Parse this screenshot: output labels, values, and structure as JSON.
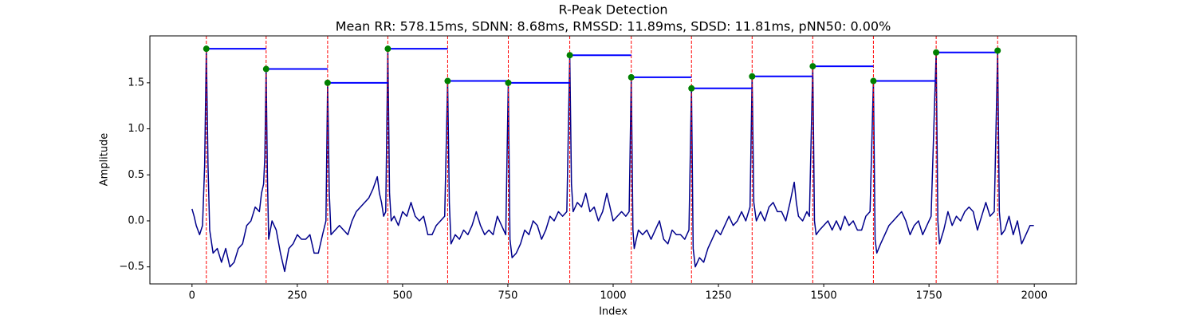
{
  "chart_data": {
    "type": "line",
    "title": "R-Peak Detection",
    "subtitle": "Mean RR: 578.15ms, SDNN: 8.68ms, RMSSD: 11.89ms, SDSD: 11.81ms, pNN50: 0.00%",
    "xlabel": "Index",
    "ylabel": "Amplitude",
    "xlim": [
      -100,
      2100
    ],
    "ylim": [
      -0.685,
      2.01
    ],
    "xticks": [
      0,
      250,
      500,
      750,
      1000,
      1250,
      1500,
      1750,
      2000
    ],
    "yticks": [
      {
        "value": -0.5,
        "label": "−0.5"
      },
      {
        "value": 0,
        "label": "0.0"
      },
      0.5,
      {
        "value": 1,
        "label": "1.0"
      },
      1.5
    ],
    "signal": {
      "color": "#00008b",
      "x": [
        0,
        5,
        10,
        18,
        25,
        30,
        34,
        38,
        42,
        50,
        60,
        70,
        80,
        90,
        100,
        110,
        120,
        130,
        140,
        150,
        160,
        165,
        170,
        173,
        176,
        179,
        182,
        190,
        200,
        210,
        220,
        230,
        240,
        250,
        260,
        270,
        280,
        290,
        300,
        310,
        318,
        322,
        326,
        330,
        340,
        350,
        360,
        370,
        380,
        390,
        400,
        410,
        420,
        430,
        440,
        445,
        450,
        455,
        460,
        465,
        469,
        473,
        480,
        490,
        500,
        510,
        520,
        530,
        540,
        550,
        560,
        570,
        580,
        590,
        600,
        607,
        611,
        615,
        625,
        635,
        645,
        655,
        665,
        675,
        685,
        695,
        705,
        715,
        725,
        735,
        745,
        751,
        755,
        760,
        770,
        780,
        790,
        800,
        810,
        820,
        830,
        840,
        850,
        860,
        870,
        880,
        890,
        897,
        901,
        905,
        915,
        925,
        935,
        945,
        955,
        965,
        975,
        985,
        990,
        1000,
        1010,
        1020,
        1030,
        1038,
        1043,
        1047,
        1050,
        1060,
        1070,
        1080,
        1090,
        1100,
        1110,
        1120,
        1130,
        1140,
        1150,
        1160,
        1170,
        1180,
        1186,
        1190,
        1195,
        1205,
        1215,
        1225,
        1235,
        1245,
        1255,
        1265,
        1275,
        1285,
        1295,
        1305,
        1315,
        1325,
        1330,
        1334,
        1340,
        1350,
        1360,
        1370,
        1380,
        1390,
        1400,
        1410,
        1420,
        1430,
        1435,
        1440,
        1450,
        1460,
        1466,
        1474,
        1478,
        1482,
        1490,
        1500,
        1510,
        1520,
        1530,
        1540,
        1550,
        1560,
        1570,
        1580,
        1590,
        1600,
        1610,
        1618,
        1622,
        1626,
        1635,
        1645,
        1655,
        1665,
        1675,
        1685,
        1695,
        1705,
        1715,
        1725,
        1735,
        1745,
        1755,
        1767,
        1771,
        1775,
        1785,
        1795,
        1805,
        1815,
        1825,
        1835,
        1845,
        1855,
        1865,
        1875,
        1885,
        1895,
        1905,
        1913,
        1917,
        1922,
        1930,
        1940,
        1950,
        1960,
        1970,
        1980,
        1990,
        1999
      ],
      "values": [
        0.13,
        0.05,
        -0.05,
        -0.15,
        -0.05,
        0.6,
        1.87,
        0.6,
        -0.1,
        -0.35,
        -0.3,
        -0.45,
        -0.3,
        -0.5,
        -0.45,
        -0.3,
        -0.25,
        -0.05,
        0.0,
        0.15,
        0.1,
        0.3,
        0.4,
        0.7,
        1.65,
        0.5,
        -0.2,
        0.0,
        -0.1,
        -0.35,
        -0.55,
        -0.3,
        -0.25,
        -0.15,
        -0.2,
        -0.2,
        -0.15,
        -0.35,
        -0.35,
        -0.15,
        0.0,
        1.5,
        0.3,
        -0.15,
        -0.1,
        -0.05,
        -0.1,
        -0.15,
        0.0,
        0.1,
        0.15,
        0.2,
        0.25,
        0.35,
        0.48,
        0.3,
        0.2,
        0.05,
        0.1,
        1.87,
        0.3,
        0.0,
        0.05,
        -0.05,
        0.1,
        0.05,
        0.2,
        0.05,
        0.0,
        0.05,
        -0.15,
        -0.15,
        -0.05,
        0.0,
        0.05,
        1.52,
        0.2,
        -0.25,
        -0.15,
        -0.2,
        -0.1,
        -0.15,
        -0.05,
        0.1,
        -0.05,
        -0.15,
        -0.1,
        -0.15,
        0.05,
        -0.05,
        -0.15,
        1.5,
        -0.2,
        -0.4,
        -0.35,
        -0.25,
        -0.1,
        -0.15,
        0.0,
        -0.05,
        -0.2,
        -0.1,
        0.05,
        0.0,
        0.1,
        0.05,
        0.1,
        1.8,
        0.4,
        0.1,
        0.2,
        0.15,
        0.3,
        0.1,
        0.15,
        0.0,
        0.1,
        0.3,
        0.2,
        0.0,
        0.05,
        0.1,
        0.05,
        0.1,
        1.56,
        -0.1,
        -0.3,
        -0.1,
        -0.15,
        -0.1,
        -0.2,
        -0.1,
        0.0,
        -0.2,
        -0.25,
        -0.1,
        -0.15,
        -0.15,
        -0.2,
        -0.1,
        1.44,
        -0.3,
        -0.5,
        -0.4,
        -0.45,
        -0.3,
        -0.2,
        -0.1,
        -0.15,
        -0.05,
        0.05,
        -0.05,
        0.0,
        0.1,
        0.0,
        0.15,
        1.57,
        0.2,
        0.0,
        0.1,
        0.0,
        0.15,
        0.2,
        0.1,
        0.1,
        0.0,
        0.2,
        0.42,
        0.2,
        0.05,
        0.0,
        0.1,
        0.05,
        1.68,
        0.0,
        -0.15,
        -0.1,
        -0.05,
        0.0,
        -0.1,
        0.0,
        -0.1,
        0.05,
        -0.05,
        0.0,
        -0.1,
        -0.1,
        0.05,
        0.1,
        1.52,
        -0.2,
        -0.35,
        -0.25,
        -0.15,
        -0.05,
        0.0,
        0.05,
        0.1,
        0.0,
        -0.15,
        -0.05,
        0.0,
        -0.15,
        -0.05,
        0.05,
        1.83,
        0.0,
        -0.25,
        -0.1,
        0.1,
        -0.05,
        0.05,
        0.0,
        0.1,
        0.15,
        0.1,
        -0.1,
        0.05,
        0.2,
        0.05,
        0.1,
        1.85,
        0.1,
        -0.15,
        -0.1,
        0.05,
        -0.15,
        0.0,
        -0.25,
        -0.15,
        -0.05,
        -0.05
      ]
    },
    "peaks": {
      "color": "green",
      "line_color": "red",
      "interval_color": "blue",
      "x": [
        34,
        176,
        322,
        465,
        607,
        751,
        897,
        1043,
        1186,
        1330,
        1474,
        1618,
        1767,
        1913
      ],
      "values": [
        1.87,
        1.65,
        1.5,
        1.87,
        1.52,
        1.5,
        1.8,
        1.56,
        1.44,
        1.57,
        1.68,
        1.52,
        1.83,
        1.85
      ]
    }
  }
}
